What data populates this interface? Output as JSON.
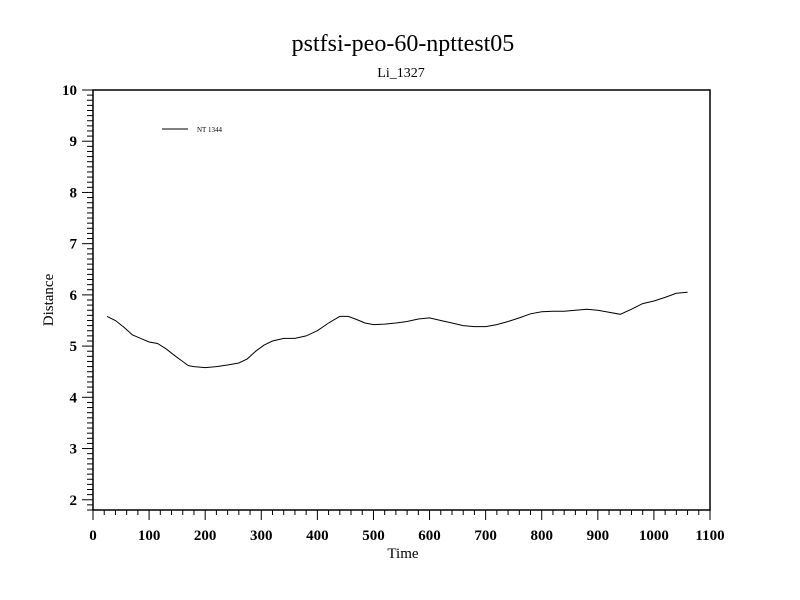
{
  "chart_data": {
    "type": "line",
    "title": "pstfsi-peo-60-npttest05",
    "subtitle": "Li_1327",
    "xlabel": "Time",
    "ylabel": "Distance",
    "xlim": [
      0,
      1100
    ],
    "ylim": [
      1.8,
      10
    ],
    "x_ticks": [
      0,
      100,
      200,
      300,
      400,
      500,
      600,
      700,
      800,
      900,
      1000,
      1100
    ],
    "y_ticks": [
      2,
      3,
      4,
      5,
      6,
      7,
      8,
      9,
      10
    ],
    "legend_position": "top-left",
    "grid": false,
    "series": [
      {
        "name": "NT 1344",
        "color": "#000000",
        "x": [
          25,
          40,
          55,
          70,
          85,
          100,
          115,
          130,
          145,
          160,
          170,
          180,
          200,
          220,
          240,
          260,
          275,
          290,
          305,
          320,
          340,
          360,
          380,
          400,
          420,
          440,
          455,
          470,
          485,
          500,
          520,
          540,
          560,
          580,
          600,
          620,
          640,
          660,
          680,
          700,
          720,
          740,
          760,
          780,
          800,
          820,
          840,
          860,
          880,
          900,
          920,
          940,
          960,
          980,
          1000,
          1020,
          1040,
          1060
        ],
        "y": [
          5.58,
          5.5,
          5.37,
          5.22,
          5.15,
          5.08,
          5.05,
          4.95,
          4.82,
          4.7,
          4.62,
          4.6,
          4.58,
          4.6,
          4.63,
          4.67,
          4.75,
          4.9,
          5.02,
          5.1,
          5.15,
          5.15,
          5.2,
          5.3,
          5.45,
          5.58,
          5.58,
          5.52,
          5.45,
          5.42,
          5.43,
          5.45,
          5.48,
          5.53,
          5.55,
          5.5,
          5.45,
          5.4,
          5.38,
          5.38,
          5.42,
          5.48,
          5.55,
          5.63,
          5.67,
          5.68,
          5.68,
          5.7,
          5.72,
          5.7,
          5.66,
          5.62,
          5.72,
          5.83,
          5.88,
          5.95,
          6.03,
          6.05
        ]
      }
    ]
  }
}
